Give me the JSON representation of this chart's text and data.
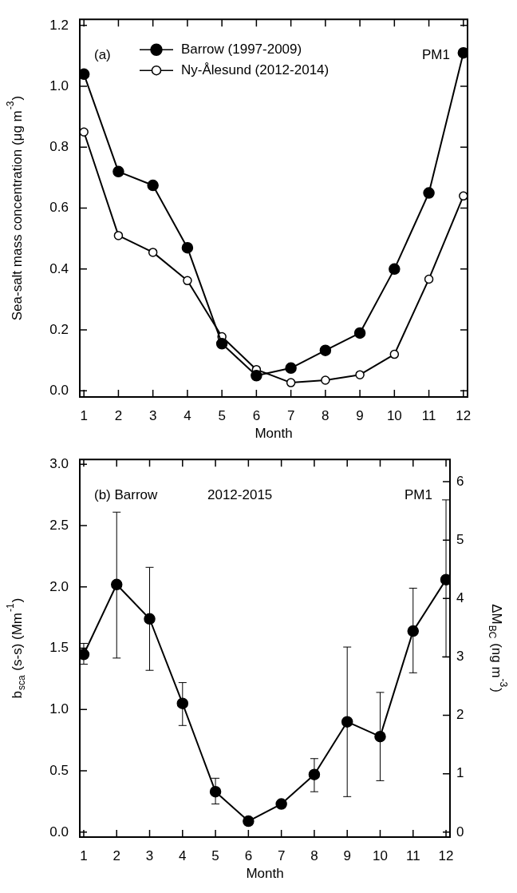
{
  "chart_data": [
    {
      "type": "line",
      "xlabel": "Month",
      "ylabel": "Sea-salt mass concentration (μg m$^{-3}$)",
      "x": [
        1,
        2,
        3,
        4,
        5,
        6,
        7,
        8,
        9,
        10,
        11,
        12
      ],
      "xlim": [
        0.88,
        12.12
      ],
      "xticks": [
        1,
        2,
        3,
        4,
        5,
        6,
        7,
        8,
        9,
        10,
        11,
        12
      ],
      "ylim": [
        -0.02,
        1.22
      ],
      "yticks": [
        {
          "value": 0,
          "label": "0.0"
        },
        0.2,
        0.4,
        0.6,
        0.8,
        {
          "value": 1,
          "label": "1.0"
        },
        1.2
      ],
      "legend": "top left",
      "marker": "circle",
      "line_style": "solid",
      "annotations": [
        "(a)",
        "PM1"
      ],
      "series": [
        {
          "name": "Barrow (1997-2009)",
          "color": "#000000",
          "values": [
            1.04,
            0.72,
            0.675,
            0.47,
            0.155,
            0.05,
            0.075,
            0.133,
            0.19,
            0.4,
            0.65,
            1.11
          ]
        },
        {
          "name": "Ny-Ålesund (2012-2014)",
          "color": "#000000",
          "values": [
            0.85,
            0.51,
            0.455,
            0.362,
            0.178,
            0.07,
            0.027,
            0.035,
            0.053,
            0.12,
            0.367,
            0.64
          ]
        }
      ]
    },
    {
      "type": "line",
      "xlabel": "Month",
      "ylabel": "b$_{sca}$ (s-s) (Mm$^{-1}$)",
      "y2label": "ΔM$_{BC}$ (ng m$^{-3}$)",
      "x": [
        1,
        2,
        3,
        4,
        5,
        6,
        7,
        8,
        9,
        10,
        11,
        12
      ],
      "xlim": [
        0.88,
        12.12
      ],
      "xticks": [
        1,
        2,
        3,
        4,
        5,
        6,
        7,
        8,
        9,
        10,
        11,
        12
      ],
      "ylim": [
        -0.04,
        3.04
      ],
      "yticks": [
        {
          "value": 0,
          "label": "0.0"
        },
        0.5,
        {
          "value": 1,
          "label": "1.0"
        },
        1.5,
        {
          "value": 2,
          "label": "2.0"
        },
        2.5,
        {
          "value": 3,
          "label": "3.0"
        }
      ],
      "y2lim": [
        -0.084,
        6.38
      ],
      "y2ticks": [
        0,
        1,
        2,
        3,
        4,
        5,
        6
      ],
      "marker": "circle",
      "line_style": "solid",
      "annotations": [
        "(b) Barrow",
        "2012-2015",
        "PM1"
      ],
      "series": [
        {
          "color": "#000000",
          "values": [
            1.45,
            2.02,
            1.74,
            1.05,
            0.33,
            0.09,
            0.23,
            0.47,
            0.9,
            0.78,
            1.64,
            2.06
          ],
          "errors": [
            [
              1.37,
              1.54
            ],
            [
              1.42,
              2.61
            ],
            [
              1.32,
              2.16
            ],
            [
              0.87,
              1.22
            ],
            [
              0.23,
              0.44
            ],
            [
              0.06,
              0.12
            ],
            null,
            [
              0.33,
              0.6
            ],
            [
              0.29,
              1.51
            ],
            [
              0.42,
              1.14
            ],
            [
              1.3,
              1.99
            ],
            [
              1.43,
              2.71
            ]
          ]
        }
      ]
    }
  ]
}
